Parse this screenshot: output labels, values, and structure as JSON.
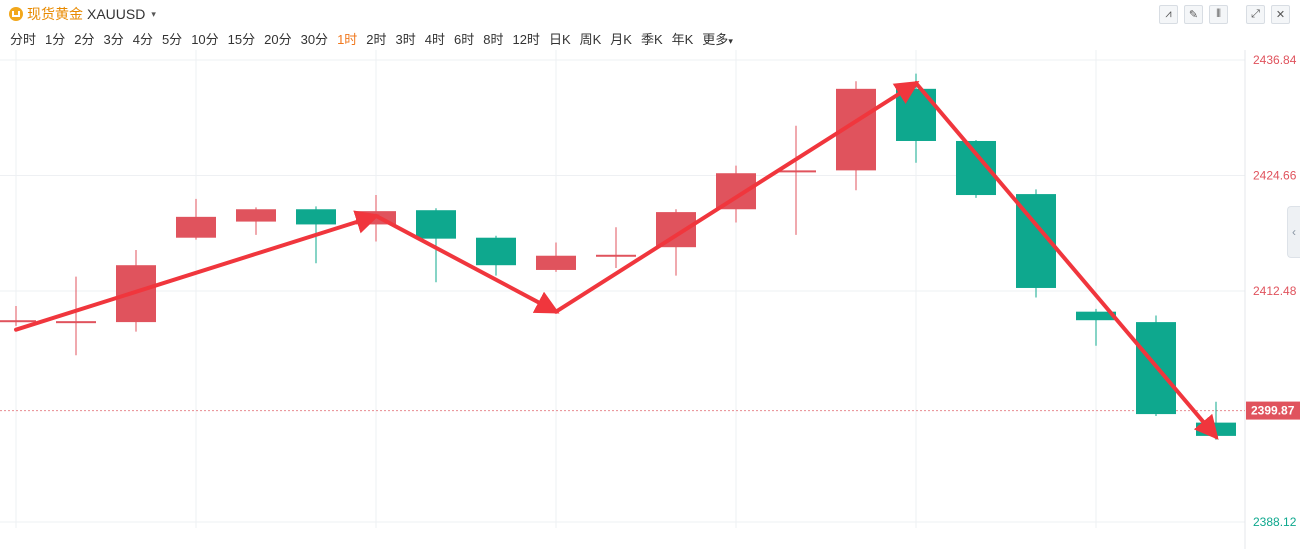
{
  "header": {
    "name": "现货黄金",
    "symbol": "XAUUSD",
    "symbol_caret": "▾",
    "tools": [
      {
        "icon": "line-tool-icon",
        "glyph": "⩘"
      },
      {
        "icon": "pen-tool-icon",
        "glyph": "✎"
      },
      {
        "icon": "candle-style-icon",
        "glyph": "⫴"
      },
      {
        "icon": "fullscreen-icon",
        "glyph": "⤢"
      },
      {
        "icon": "close-icon",
        "glyph": "✕"
      }
    ]
  },
  "periods": [
    "分时",
    "1分",
    "2分",
    "3分",
    "4分",
    "5分",
    "10分",
    "15分",
    "20分",
    "30分",
    "1时",
    "2时",
    "3时",
    "4时",
    "6时",
    "8时",
    "12时",
    "日K",
    "周K",
    "月K",
    "季K",
    "年K"
  ],
  "active_period": "1时",
  "more_label": "更多",
  "more_caret": "▾",
  "side_handle_glyph": "‹",
  "colors": {
    "up": "#e0535d",
    "down": "#0ea88e",
    "arrow": "#f0363d",
    "grid": "#eef0f3",
    "price_line": "#e88b90"
  },
  "chart_data": {
    "type": "candlestick",
    "yrange": [
      2388.12,
      2436.84
    ],
    "price_ticks": [
      2436.84,
      2424.66,
      2412.48,
      2388.12
    ],
    "current_price": 2399.87,
    "candles": [
      {
        "open": 2409.4,
        "close": 2409.4,
        "high": 2410.9,
        "low": 2408.8
      },
      {
        "open": 2409.3,
        "close": 2409.3,
        "high": 2414.0,
        "low": 2405.7
      },
      {
        "open": 2409.2,
        "close": 2415.2,
        "high": 2416.8,
        "low": 2408.2
      },
      {
        "open": 2418.1,
        "close": 2420.3,
        "high": 2422.2,
        "low": 2417.9
      },
      {
        "open": 2419.8,
        "close": 2421.1,
        "high": 2421.3,
        "low": 2418.4
      },
      {
        "open": 2421.1,
        "close": 2419.5,
        "high": 2421.4,
        "low": 2415.4
      },
      {
        "open": 2419.5,
        "close": 2420.9,
        "high": 2422.6,
        "low": 2417.7
      },
      {
        "open": 2421.0,
        "close": 2418.0,
        "high": 2421.2,
        "low": 2413.4
      },
      {
        "open": 2418.1,
        "close": 2415.2,
        "high": 2418.3,
        "low": 2414.1
      },
      {
        "open": 2414.7,
        "close": 2416.2,
        "high": 2417.6,
        "low": 2414.5
      },
      {
        "open": 2416.3,
        "close": 2416.3,
        "high": 2419.2,
        "low": 2414.9
      },
      {
        "open": 2417.1,
        "close": 2420.8,
        "high": 2421.1,
        "low": 2414.1
      },
      {
        "open": 2421.1,
        "close": 2424.9,
        "high": 2425.7,
        "low": 2419.7
      },
      {
        "open": 2425.0,
        "close": 2425.2,
        "high": 2429.9,
        "low": 2418.4
      },
      {
        "open": 2425.2,
        "close": 2433.8,
        "high": 2434.6,
        "low": 2423.1
      },
      {
        "open": 2433.8,
        "close": 2428.3,
        "high": 2435.4,
        "low": 2426.0
      },
      {
        "open": 2428.3,
        "close": 2422.6,
        "high": 2428.4,
        "low": 2422.3
      },
      {
        "open": 2422.7,
        "close": 2412.8,
        "high": 2423.2,
        "low": 2411.8
      },
      {
        "open": 2410.3,
        "close": 2409.4,
        "high": 2410.6,
        "low": 2406.7
      },
      {
        "open": 2409.2,
        "close": 2399.5,
        "high": 2409.9,
        "low": 2399.3
      },
      {
        "open": 2398.6,
        "close": 2397.2,
        "high": 2400.8,
        "low": 2396.8
      }
    ],
    "trend_arrows": [
      {
        "from": [
          0,
          2408.4
        ],
        "to": [
          6,
          2420.4
        ],
        "thick": true
      },
      {
        "from": [
          6,
          2420.4
        ],
        "to": [
          9,
          2410.3
        ],
        "thick": true
      },
      {
        "from": [
          9,
          2410.3
        ],
        "to": [
          15,
          2434.4
        ],
        "thick": true
      },
      {
        "from": [
          15,
          2434.4
        ],
        "to": [
          20,
          2397.1
        ],
        "thick": true
      }
    ],
    "grid": true
  }
}
